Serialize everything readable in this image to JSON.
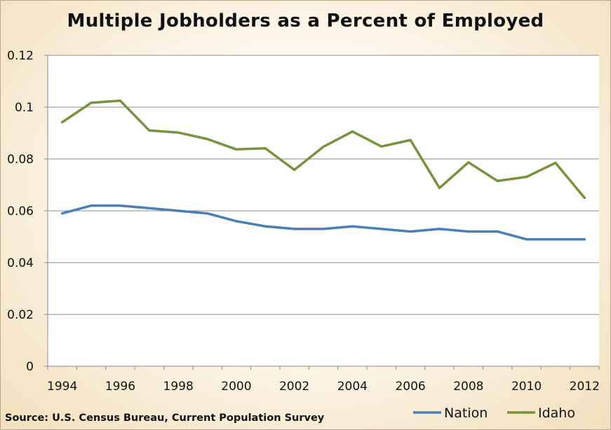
{
  "chart_data": {
    "type": "line",
    "title": "Multiple Jobholders as a Percent of Employed",
    "source": "Source: U.S. Census Bureau, Current Population Survey",
    "x": [
      1994,
      1995,
      1996,
      1997,
      1998,
      1999,
      2000,
      2001,
      2002,
      2003,
      2004,
      2005,
      2006,
      2007,
      2008,
      2009,
      2010,
      2011,
      2012
    ],
    "x_ticks": [
      "1994",
      "1996",
      "1998",
      "2000",
      "2002",
      "2004",
      "2006",
      "2008",
      "2010",
      "2012"
    ],
    "y_ticks": [
      "0",
      "0.02",
      "0.04",
      "0.06",
      "0.08",
      "0.1",
      "0.12"
    ],
    "ylim": [
      0,
      0.12
    ],
    "grid": true,
    "legend": "bottom-right",
    "series": [
      {
        "name": "Nation",
        "color": "#4a7ebb",
        "values": [
          0.059,
          0.062,
          0.062,
          0.061,
          0.06,
          0.059,
          0.056,
          0.054,
          0.053,
          0.053,
          0.054,
          0.053,
          0.052,
          0.053,
          0.052,
          0.052,
          0.049,
          0.049,
          0.049
        ]
      },
      {
        "name": "Idaho",
        "color": "#77933c",
        "values": [
          0.0942,
          0.1017,
          0.1025,
          0.091,
          0.0902,
          0.0877,
          0.0837,
          0.0841,
          0.0758,
          0.0847,
          0.0906,
          0.0848,
          0.0873,
          0.0688,
          0.0787,
          0.0715,
          0.0731,
          0.0785,
          0.065
        ]
      }
    ]
  }
}
